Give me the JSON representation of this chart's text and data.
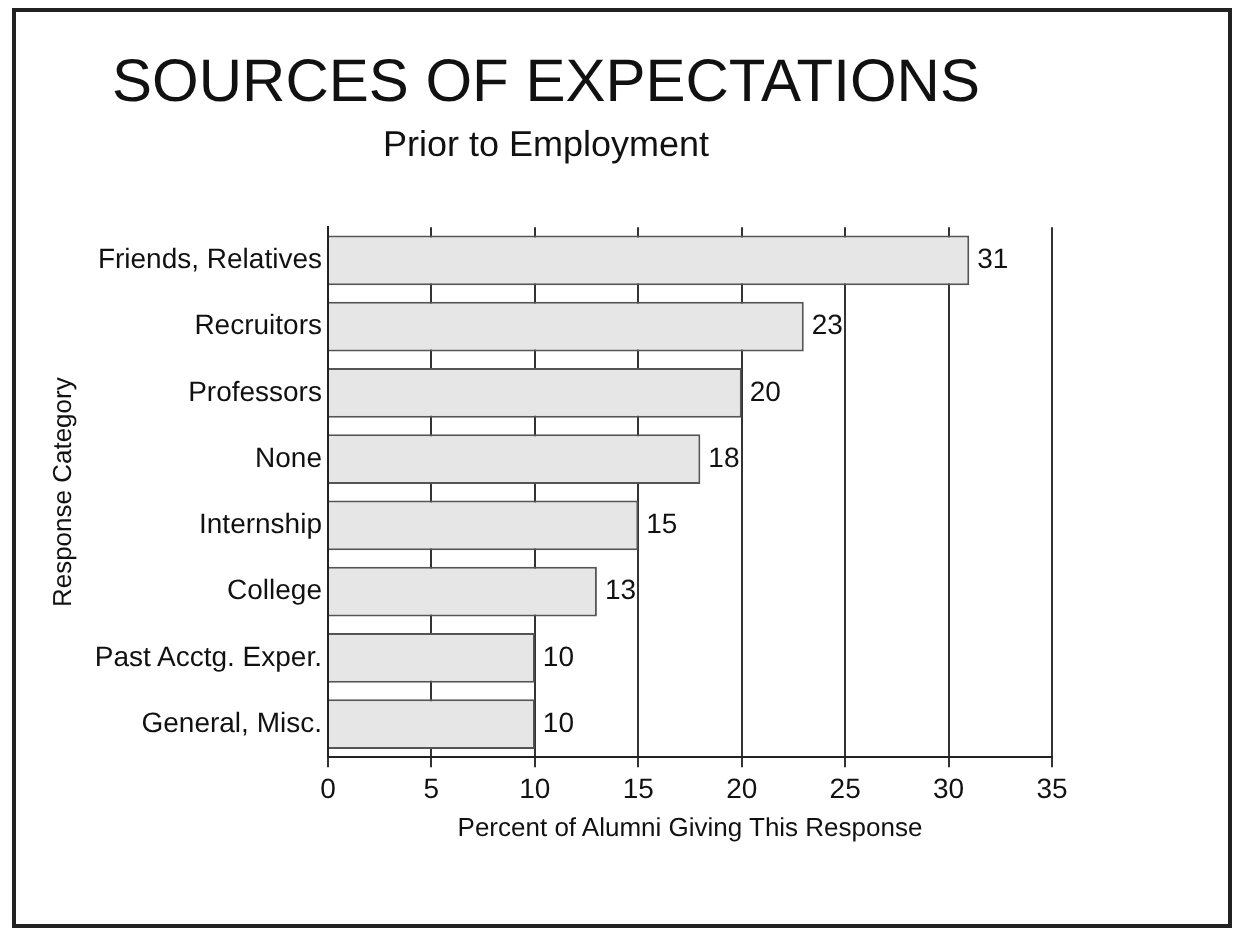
{
  "chart_data": {
    "type": "bar",
    "orientation": "horizontal",
    "title": "SOURCES OF EXPECTATIONS",
    "subtitle": "Prior to Employment",
    "xlabel": "Percent of Alumni Giving This Response",
    "ylabel": "Response Category",
    "categories": [
      "Friends, Relatives",
      "Recruitors",
      "Professors",
      "None",
      "Internship",
      "College",
      "Past Acctg. Exper.",
      "General, Misc."
    ],
    "values": [
      31,
      23,
      20,
      18,
      15,
      13,
      10,
      10
    ],
    "color": "#e6e6e6",
    "xlim": [
      0,
      35
    ],
    "xticks": [
      0,
      5,
      10,
      15,
      20,
      25,
      30,
      35
    ],
    "grid": "x",
    "data_labels": true,
    "legend": false
  }
}
